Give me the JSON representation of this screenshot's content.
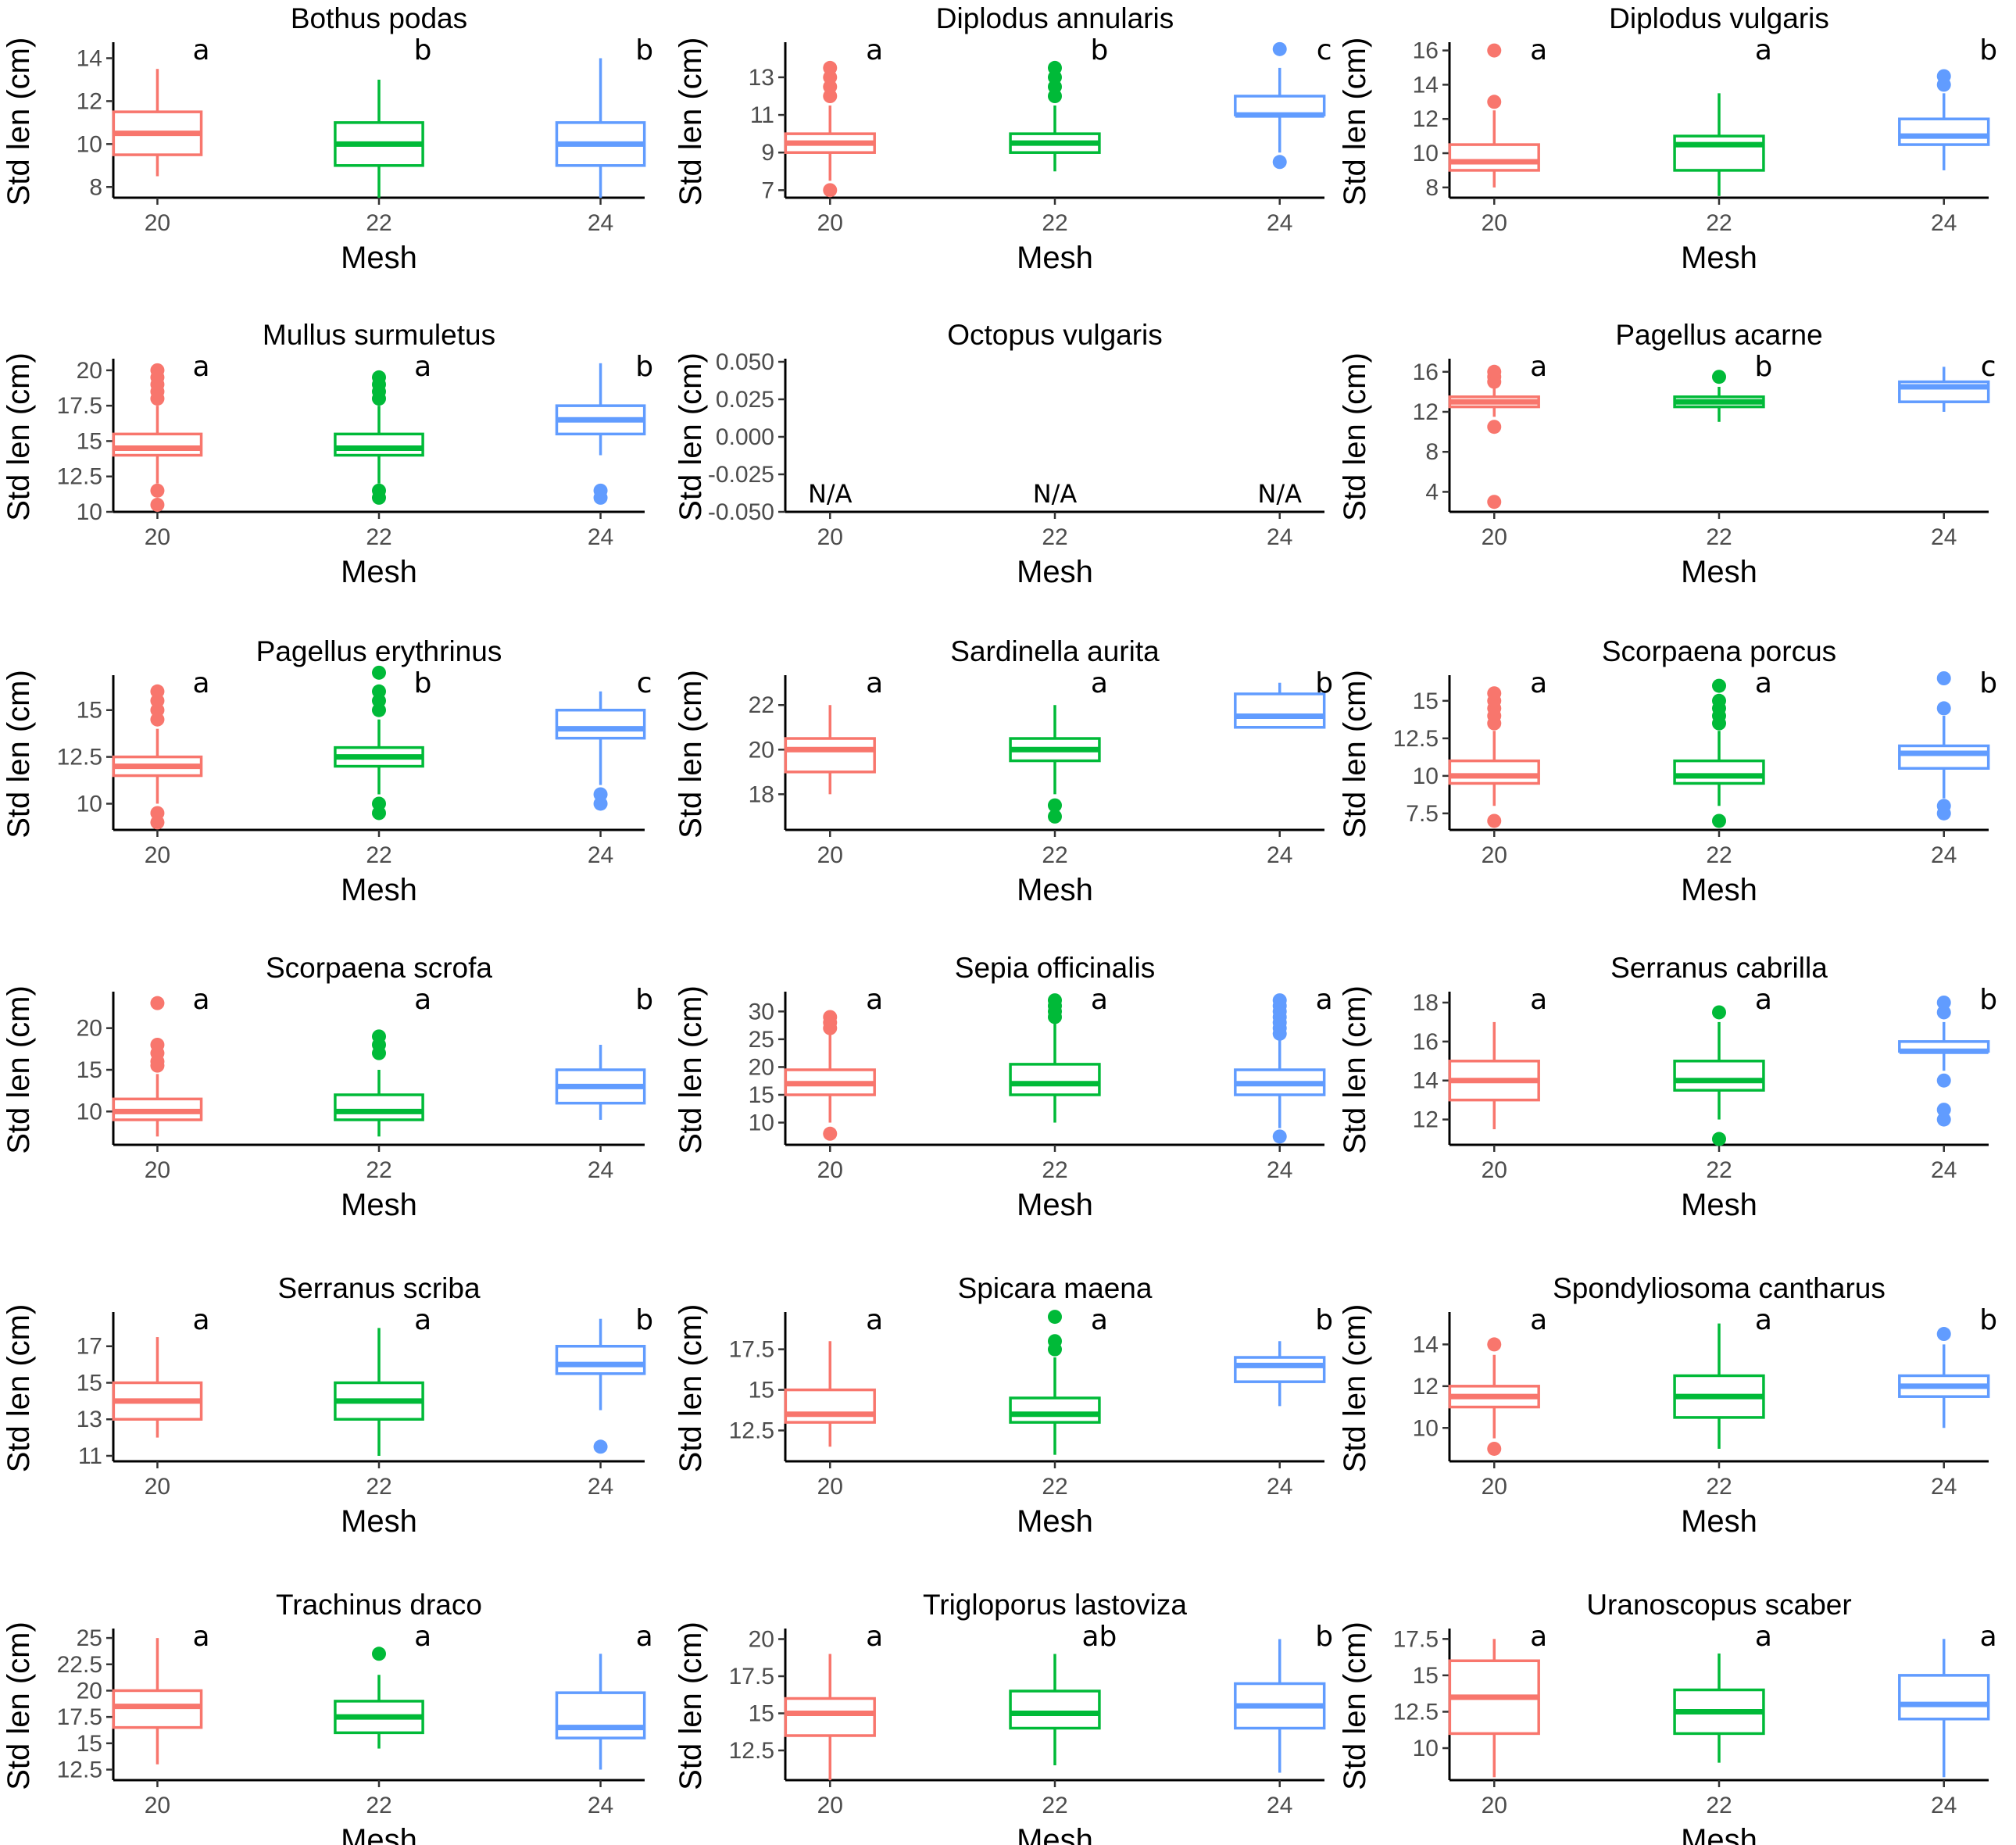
{
  "colors": {
    "20": "#F8766D",
    "22": "#00BA38",
    "24": "#619CFF"
  },
  "chart_data": [
    {
      "type": "box",
      "title": "Bothus podas",
      "xlabel": "Mesh",
      "ylabel": "Std len (cm)",
      "categories": [
        "20",
        "22",
        "24"
      ],
      "yticks": [
        8,
        10,
        12,
        14
      ],
      "ylim": [
        7.5,
        14.6
      ],
      "boxes": [
        {
          "min": 8.5,
          "q1": 9.5,
          "median": 10.5,
          "q3": 11.5,
          "max": 13.5,
          "outliers": []
        },
        {
          "min": 7.5,
          "q1": 9.0,
          "median": 10.0,
          "q3": 11.0,
          "max": 13.0,
          "outliers": []
        },
        {
          "min": 7.5,
          "q1": 9.0,
          "median": 10.0,
          "q3": 11.0,
          "max": 14.0,
          "outliers": []
        }
      ],
      "letters": [
        "a",
        "b",
        "b"
      ]
    },
    {
      "type": "box",
      "title": "Diplodus annularis",
      "xlabel": "Mesh",
      "ylabel": "Std len (cm)",
      "categories": [
        "20",
        "22",
        "24"
      ],
      "yticks": [
        7,
        9,
        11,
        13
      ],
      "ylim": [
        6.6,
        14.7
      ],
      "boxes": [
        {
          "min": 7.5,
          "q1": 9.0,
          "median": 9.5,
          "q3": 10.0,
          "max": 11.5,
          "outliers": [
            7.0,
            12.0,
            12.5,
            13.0,
            13.5
          ]
        },
        {
          "min": 8.0,
          "q1": 9.0,
          "median": 9.5,
          "q3": 10.0,
          "max": 11.5,
          "outliers": [
            12.0,
            12.5,
            13.0,
            13.5
          ]
        },
        {
          "min": 9.0,
          "q1": 11.0,
          "median": 11.0,
          "q3": 12.0,
          "max": 13.5,
          "outliers": [
            8.5,
            14.5
          ]
        }
      ],
      "letters": [
        "a",
        "b",
        "c"
      ]
    },
    {
      "type": "box",
      "title": "Diplodus vulgaris",
      "xlabel": "Mesh",
      "ylabel": "Std len (cm)",
      "categories": [
        "20",
        "22",
        "24"
      ],
      "yticks": [
        8,
        10,
        12,
        14,
        16
      ],
      "ylim": [
        7.4,
        16.3
      ],
      "boxes": [
        {
          "min": 8.0,
          "q1": 9.0,
          "median": 9.5,
          "q3": 10.5,
          "max": 12.5,
          "outliers": [
            13.0,
            16.0
          ]
        },
        {
          "min": 7.5,
          "q1": 9.0,
          "median": 10.5,
          "q3": 11.0,
          "max": 13.5,
          "outliers": []
        },
        {
          "min": 9.0,
          "q1": 10.5,
          "median": 11.0,
          "q3": 12.0,
          "max": 13.5,
          "outliers": [
            14.0,
            14.5
          ]
        }
      ],
      "letters": [
        "a",
        "a",
        "b"
      ]
    },
    {
      "type": "box",
      "title": "Mullus surmuletus",
      "xlabel": "Mesh",
      "ylabel": "Std len (cm)",
      "categories": [
        "20",
        "22",
        "24"
      ],
      "yticks": [
        10.0,
        12.5,
        15.0,
        17.5,
        20.0
      ],
      "ylim": [
        10.0,
        20.6
      ],
      "boxes": [
        {
          "min": 12.0,
          "q1": 14.0,
          "median": 14.5,
          "q3": 15.5,
          "max": 17.5,
          "outliers": [
            10.5,
            11.5,
            18.0,
            18.5,
            19.0,
            19.5,
            20.0
          ]
        },
        {
          "min": 12.0,
          "q1": 14.0,
          "median": 14.5,
          "q3": 15.5,
          "max": 17.5,
          "outliers": [
            11.0,
            11.5,
            18.0,
            18.5,
            19.0,
            19.5
          ]
        },
        {
          "min": 14.0,
          "q1": 15.5,
          "median": 16.5,
          "q3": 17.5,
          "max": 20.5,
          "outliers": [
            11.0,
            11.5
          ]
        }
      ],
      "letters": [
        "a",
        "a",
        "b"
      ]
    },
    {
      "type": "box",
      "title": "Octopus vulgaris",
      "xlabel": "Mesh",
      "ylabel": "Std len (cm)",
      "categories": [
        "20",
        "22",
        "24"
      ],
      "yticks": [
        -0.05,
        -0.025,
        0.0,
        0.025,
        0.05
      ],
      "ytick_labels": [
        "-0.050",
        "-0.025",
        "0.000",
        "0.025",
        "0.050"
      ],
      "ylim": [
        -0.05,
        0.05
      ],
      "boxes": [],
      "letters": [],
      "na_labels": [
        "N/A",
        "N/A",
        "N/A"
      ]
    },
    {
      "type": "box",
      "title": "Pagellus acarne",
      "xlabel": "Mesh",
      "ylabel": "Std len (cm)",
      "categories": [
        "20",
        "22",
        "24"
      ],
      "yticks": [
        4,
        8,
        12,
        16
      ],
      "ylim": [
        2.0,
        17.0
      ],
      "boxes": [
        {
          "min": 11.5,
          "q1": 12.5,
          "median": 13.0,
          "q3": 13.5,
          "max": 14.5,
          "outliers": [
            3.0,
            10.5,
            15.0,
            15.5,
            16.0
          ]
        },
        {
          "min": 11.0,
          "q1": 12.5,
          "median": 13.0,
          "q3": 13.5,
          "max": 14.5,
          "outliers": [
            15.5
          ]
        },
        {
          "min": 12.0,
          "q1": 13.0,
          "median": 14.5,
          "q3": 15.0,
          "max": 16.5,
          "outliers": []
        }
      ],
      "letters": [
        "a",
        "b",
        "c"
      ]
    },
    {
      "type": "box",
      "title": "Pagellus erythrinus",
      "xlabel": "Mesh",
      "ylabel": "Std len (cm)",
      "categories": [
        "20",
        "22",
        "24"
      ],
      "yticks": [
        10.0,
        12.5,
        15.0
      ],
      "ylim": [
        8.6,
        16.7
      ],
      "boxes": [
        {
          "min": 10.0,
          "q1": 11.5,
          "median": 12.0,
          "q3": 12.5,
          "max": 14.0,
          "outliers": [
            9.0,
            9.5,
            14.5,
            15.0,
            15.5,
            16.0
          ]
        },
        {
          "min": 10.5,
          "q1": 12.0,
          "median": 12.5,
          "q3": 13.0,
          "max": 14.5,
          "outliers": [
            9.5,
            10.0,
            15.0,
            15.5,
            16.0,
            17.0
          ]
        },
        {
          "min": 11.0,
          "q1": 13.5,
          "median": 14.0,
          "q3": 15.0,
          "max": 16.0,
          "outliers": [
            10.0,
            10.5
          ]
        }
      ],
      "letters": [
        "a",
        "b",
        "c"
      ]
    },
    {
      "type": "box",
      "title": "Sardinella aurita",
      "xlabel": "Mesh",
      "ylabel": "Std len (cm)",
      "categories": [
        "20",
        "22",
        "24"
      ],
      "yticks": [
        18,
        20,
        22
      ],
      "ylim": [
        16.4,
        23.2
      ],
      "boxes": [
        {
          "min": 18.0,
          "q1": 19.0,
          "median": 20.0,
          "q3": 20.5,
          "max": 22.0,
          "outliers": []
        },
        {
          "min": 18.0,
          "q1": 19.5,
          "median": 20.0,
          "q3": 20.5,
          "max": 22.0,
          "outliers": [
            17.0,
            17.5
          ]
        },
        {
          "min": 21.0,
          "q1": 21.0,
          "median": 21.5,
          "q3": 22.5,
          "max": 23.0,
          "outliers": []
        }
      ],
      "letters": [
        "a",
        "a",
        "b"
      ]
    },
    {
      "type": "box",
      "title": "Scorpaena porcus",
      "xlabel": "Mesh",
      "ylabel": "Std len (cm)",
      "categories": [
        "20",
        "22",
        "24"
      ],
      "yticks": [
        7.5,
        10.0,
        12.5,
        15.0
      ],
      "ylim": [
        6.4,
        16.5
      ],
      "boxes": [
        {
          "min": 8.0,
          "q1": 9.5,
          "median": 10.0,
          "q3": 11.0,
          "max": 13.0,
          "outliers": [
            7.0,
            13.5,
            14.0,
            14.5,
            15.0,
            15.5
          ]
        },
        {
          "min": 8.0,
          "q1": 9.5,
          "median": 10.0,
          "q3": 11.0,
          "max": 13.0,
          "outliers": [
            7.0,
            13.5,
            14.0,
            14.5,
            15.0,
            16.0
          ]
        },
        {
          "min": 8.5,
          "q1": 10.5,
          "median": 11.5,
          "q3": 12.0,
          "max": 14.0,
          "outliers": [
            7.5,
            8.0,
            14.5,
            16.5
          ]
        }
      ],
      "letters": [
        "a",
        "a",
        "b"
      ]
    },
    {
      "type": "box",
      "title": "Scorpaena scrofa",
      "xlabel": "Mesh",
      "ylabel": "Std len (cm)",
      "categories": [
        "20",
        "22",
        "24"
      ],
      "yticks": [
        10,
        15,
        20
      ],
      "ylim": [
        6.0,
        24.0
      ],
      "boxes": [
        {
          "min": 7.0,
          "q1": 9.0,
          "median": 10.0,
          "q3": 11.5,
          "max": 14.5,
          "outliers": [
            15.5,
            16.0,
            17.0,
            18.0,
            23.0
          ]
        },
        {
          "min": 7.0,
          "q1": 9.0,
          "median": 10.0,
          "q3": 12.0,
          "max": 15.0,
          "outliers": [
            17.0,
            18.0,
            19.0
          ]
        },
        {
          "min": 9.0,
          "q1": 11.0,
          "median": 13.0,
          "q3": 15.0,
          "max": 18.0,
          "outliers": []
        }
      ],
      "letters": [
        "a",
        "a",
        "b"
      ]
    },
    {
      "type": "box",
      "title": "Sepia officinalis",
      "xlabel": "Mesh",
      "ylabel": "Std len (cm)",
      "categories": [
        "20",
        "22",
        "24"
      ],
      "yticks": [
        10,
        15,
        20,
        25,
        30
      ],
      "ylim": [
        6.0,
        33.0
      ],
      "boxes": [
        {
          "min": 10.0,
          "q1": 15.0,
          "median": 17.0,
          "q3": 19.5,
          "max": 26.0,
          "outliers": [
            8.0,
            27.0,
            28.0,
            29.0
          ]
        },
        {
          "min": 10.0,
          "q1": 15.0,
          "median": 17.0,
          "q3": 20.5,
          "max": 28.0,
          "outliers": [
            29.0,
            30.0,
            31.0,
            32.0
          ]
        },
        {
          "min": 9.0,
          "q1": 15.0,
          "median": 17.0,
          "q3": 19.5,
          "max": 25.0,
          "outliers": [
            7.5,
            26.0,
            27.0,
            28.0,
            29.0,
            30.0,
            31.0,
            32.0
          ]
        }
      ],
      "letters": [
        "a",
        "a",
        "a"
      ]
    },
    {
      "type": "box",
      "title": "Serranus cabrilla",
      "xlabel": "Mesh",
      "ylabel": "Std len (cm)",
      "categories": [
        "20",
        "22",
        "24"
      ],
      "yticks": [
        12,
        14,
        16,
        18
      ],
      "ylim": [
        10.7,
        18.4
      ],
      "boxes": [
        {
          "min": 11.5,
          "q1": 13.0,
          "median": 14.0,
          "q3": 15.0,
          "max": 17.0,
          "outliers": []
        },
        {
          "min": 12.0,
          "q1": 13.5,
          "median": 14.0,
          "q3": 15.0,
          "max": 17.0,
          "outliers": [
            11.0,
            17.5
          ]
        },
        {
          "min": 14.5,
          "q1": 15.5,
          "median": 15.5,
          "q3": 16.0,
          "max": 17.0,
          "outliers": [
            12.0,
            12.5,
            14.0,
            17.5,
            18.0
          ]
        }
      ],
      "letters": [
        "a",
        "a",
        "b"
      ]
    },
    {
      "type": "box",
      "title": "Serranus scriba",
      "xlabel": "Mesh",
      "ylabel": "Std len (cm)",
      "categories": [
        "20",
        "22",
        "24"
      ],
      "yticks": [
        11,
        13,
        15,
        17
      ],
      "ylim": [
        10.7,
        18.7
      ],
      "boxes": [
        {
          "min": 12.0,
          "q1": 13.0,
          "median": 14.0,
          "q3": 15.0,
          "max": 17.5,
          "outliers": []
        },
        {
          "min": 11.0,
          "q1": 13.0,
          "median": 14.0,
          "q3": 15.0,
          "max": 18.0,
          "outliers": []
        },
        {
          "min": 13.5,
          "q1": 15.5,
          "median": 16.0,
          "q3": 17.0,
          "max": 18.5,
          "outliers": [
            11.5
          ]
        }
      ],
      "letters": [
        "a",
        "a",
        "b"
      ]
    },
    {
      "type": "box",
      "title": "Spicara maena",
      "xlabel": "Mesh",
      "ylabel": "Std len (cm)",
      "categories": [
        "20",
        "22",
        "24"
      ],
      "yticks": [
        12.5,
        15.0,
        17.5
      ],
      "ylim": [
        10.6,
        19.6
      ],
      "boxes": [
        {
          "min": 11.5,
          "q1": 13.0,
          "median": 13.5,
          "q3": 15.0,
          "max": 18.0,
          "outliers": []
        },
        {
          "min": 11.0,
          "q1": 13.0,
          "median": 13.5,
          "q3": 14.5,
          "max": 17.0,
          "outliers": [
            17.5,
            18.0,
            19.5
          ]
        },
        {
          "min": 14.0,
          "q1": 15.5,
          "median": 16.5,
          "q3": 17.0,
          "max": 18.0,
          "outliers": []
        }
      ],
      "letters": [
        "a",
        "a",
        "b"
      ]
    },
    {
      "type": "box",
      "title": "Spondyliosoma cantharus",
      "xlabel": "Mesh",
      "ylabel": "Std len (cm)",
      "categories": [
        "20",
        "22",
        "24"
      ],
      "yticks": [
        10,
        12,
        14
      ],
      "ylim": [
        8.4,
        15.4
      ],
      "boxes": [
        {
          "min": 9.5,
          "q1": 11.0,
          "median": 11.5,
          "q3": 12.0,
          "max": 13.5,
          "outliers": [
            9.0,
            14.0
          ]
        },
        {
          "min": 9.0,
          "q1": 10.5,
          "median": 11.5,
          "q3": 12.5,
          "max": 15.0,
          "outliers": []
        },
        {
          "min": 10.0,
          "q1": 11.5,
          "median": 12.0,
          "q3": 12.5,
          "max": 14.0,
          "outliers": [
            14.5
          ]
        }
      ],
      "letters": [
        "a",
        "a",
        "b"
      ]
    },
    {
      "type": "box",
      "title": "Trachinus draco",
      "xlabel": "Mesh",
      "ylabel": "Std len (cm)",
      "categories": [
        "20",
        "22",
        "24"
      ],
      "yticks": [
        12.5,
        15.0,
        17.5,
        20.0,
        22.5,
        25.0
      ],
      "ylim": [
        11.5,
        25.6
      ],
      "boxes": [
        {
          "min": 13.0,
          "q1": 16.5,
          "median": 18.5,
          "q3": 20.0,
          "max": 25.0,
          "outliers": []
        },
        {
          "min": 14.5,
          "q1": 16.0,
          "median": 17.5,
          "q3": 19.0,
          "max": 21.5,
          "outliers": [
            23.5
          ]
        },
        {
          "min": 12.5,
          "q1": 15.5,
          "median": 16.5,
          "q3": 19.8,
          "max": 23.5,
          "outliers": []
        }
      ],
      "letters": [
        "a",
        "a",
        "a"
      ]
    },
    {
      "type": "box",
      "title": "Trigloporus lastoviza",
      "xlabel": "Mesh",
      "ylabel": "Std len (cm)",
      "categories": [
        "20",
        "22",
        "24"
      ],
      "yticks": [
        12.5,
        15.0,
        17.5,
        20.0
      ],
      "ylim": [
        10.5,
        20.5
      ],
      "boxes": [
        {
          "min": 10.5,
          "q1": 13.5,
          "median": 15.0,
          "q3": 16.0,
          "max": 19.0,
          "outliers": []
        },
        {
          "min": 11.5,
          "q1": 14.0,
          "median": 15.0,
          "q3": 16.5,
          "max": 19.0,
          "outliers": []
        },
        {
          "min": 11.0,
          "q1": 14.0,
          "median": 15.5,
          "q3": 17.0,
          "max": 20.0,
          "outliers": []
        }
      ],
      "letters": [
        "a",
        "ab",
        "b"
      ]
    },
    {
      "type": "box",
      "title": "Uranoscopus scaber",
      "xlabel": "Mesh",
      "ylabel": "Std len (cm)",
      "categories": [
        "20",
        "22",
        "24"
      ],
      "yticks": [
        10.0,
        12.5,
        15.0,
        17.5
      ],
      "ylim": [
        7.8,
        18.0
      ],
      "boxes": [
        {
          "min": 8.0,
          "q1": 11.0,
          "median": 13.5,
          "q3": 16.0,
          "max": 17.5,
          "outliers": []
        },
        {
          "min": 9.0,
          "q1": 11.0,
          "median": 12.5,
          "q3": 14.0,
          "max": 16.5,
          "outliers": []
        },
        {
          "min": 8.0,
          "q1": 12.0,
          "median": 13.0,
          "q3": 15.0,
          "max": 17.5,
          "outliers": []
        }
      ],
      "letters": [
        "a",
        "a",
        "a"
      ]
    }
  ]
}
